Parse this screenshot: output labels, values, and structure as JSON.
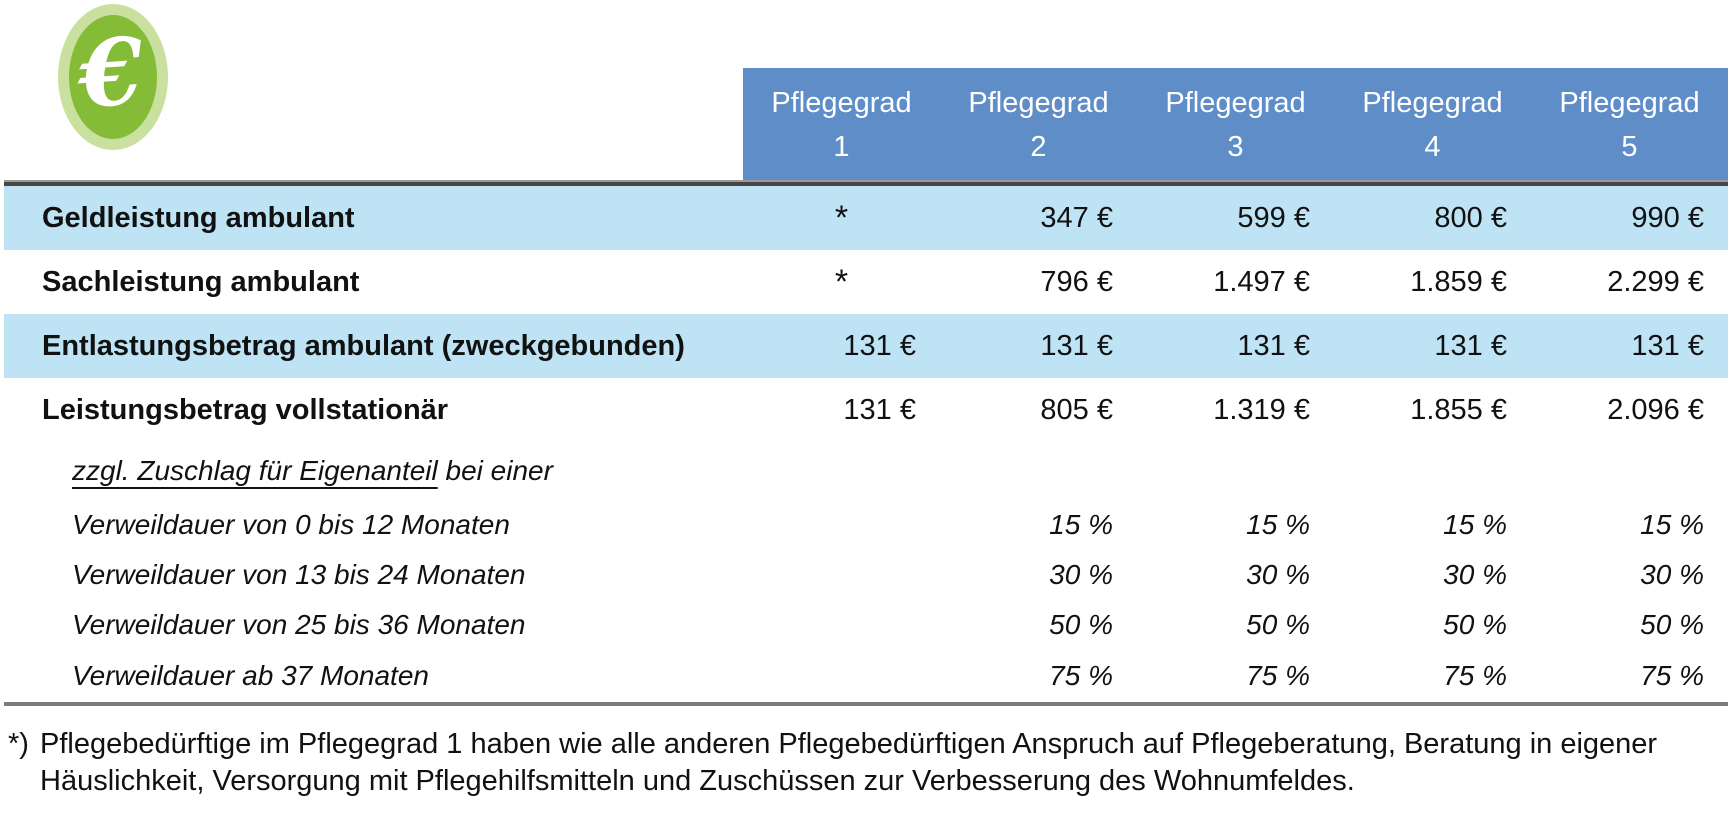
{
  "icon": {
    "symbol": "€",
    "circle_color": "#85bc37",
    "ring_color": "#c9e09e"
  },
  "colors": {
    "header_blue": "#5e8dc8",
    "row_highlight_blue": "#bde3f5",
    "header_text": "#ffffff",
    "body_text": "#111111",
    "top_rule_dark": "#464646",
    "top_rule_light": "#9a9a9a",
    "bottom_rule": "#7a7a7a"
  },
  "table": {
    "columns": [
      {
        "title": "Pflegegrad",
        "number": "1"
      },
      {
        "title": "Pflegegrad",
        "number": "2"
      },
      {
        "title": "Pflegegrad",
        "number": "3"
      },
      {
        "title": "Pflegegrad",
        "number": "4"
      },
      {
        "title": "Pflegegrad",
        "number": "5"
      }
    ],
    "rows": [
      {
        "label": "Geldleistung ambulant",
        "values": [
          "*",
          "347 €",
          "599 €",
          "800 €",
          "990 €"
        ]
      },
      {
        "label": "Sachleistung ambulant",
        "values": [
          "*",
          "796 €",
          "1.497 €",
          "1.859 €",
          "2.299 €"
        ]
      },
      {
        "label": "Entlastungsbetrag ambulant (zweckgebunden)",
        "values": [
          "131 €",
          "131 €",
          "131 €",
          "131 €",
          "131 €"
        ]
      },
      {
        "label": "Leistungsbetrag vollstationär",
        "values": [
          "131 €",
          "805 €",
          "1.319 €",
          "1.855 €",
          "2.096 €"
        ]
      },
      {
        "label_underlined": "zzgl. Zuschlag für Eigenanteil",
        "label_rest": " bei einer",
        "values": [
          "",
          "",
          "",
          "",
          ""
        ]
      },
      {
        "label": "Verweildauer von 0 bis 12 Monaten",
        "values": [
          "",
          "15 %",
          "15 %",
          "15 %",
          "15 %"
        ]
      },
      {
        "label": "Verweildauer von 13 bis 24 Monaten",
        "values": [
          "",
          "30 %",
          "30 %",
          "30 %",
          "30 %"
        ]
      },
      {
        "label": "Verweildauer von 25 bis 36 Monaten",
        "values": [
          "",
          "50 %",
          "50 %",
          "50 %",
          "50 %"
        ]
      },
      {
        "label": "Verweildauer ab 37 Monaten",
        "values": [
          "",
          "75 %",
          "75 %",
          "75 %",
          "75 %"
        ]
      }
    ]
  },
  "footnote": {
    "marker": "*)",
    "line1": "Pflegebedürftige im Pflegegrad 1 haben wie alle anderen Pflegebedürftigen Anspruch auf Pflegeberatung, Beratung in eigener",
    "line2": "Häuslichkeit, Versorgung mit Pflegehilfsmitteln und Zuschüssen zur Verbesserung des Wohnumfeldes."
  }
}
